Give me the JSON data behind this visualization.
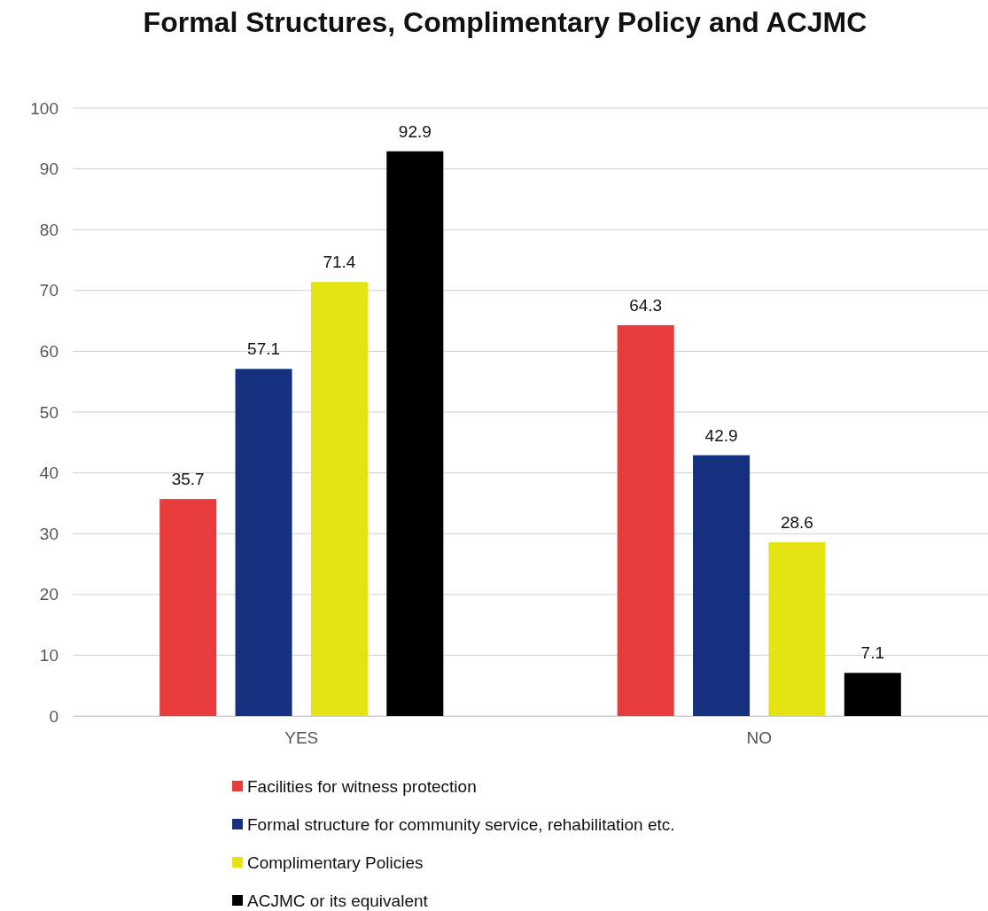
{
  "chart_data": {
    "type": "bar",
    "title": "Formal Structures, Complimentary Policy and ACJMC",
    "categories": [
      "YES",
      "NO"
    ],
    "series": [
      {
        "name": "Facilities for witness protection",
        "color": "#e83c3c",
        "values": [
          35.7,
          64.3
        ]
      },
      {
        "name": "Formal structure for community service, rehabilitation etc.",
        "color": "#14307e",
        "values": [
          57.1,
          42.9
        ]
      },
      {
        "name": "Complimentary Policies",
        "color": "#e4e412",
        "values": [
          71.4,
          28.6
        ]
      },
      {
        "name": "ACJMC or its equivalent",
        "color": "#000000",
        "values": [
          92.9,
          7.1
        ]
      }
    ],
    "ylim": [
      0,
      100
    ],
    "yticks": [
      0,
      10,
      20,
      30,
      40,
      50,
      60,
      70,
      80,
      90,
      100
    ],
    "grid": "y",
    "legend": "bottom",
    "data_labels": true
  }
}
